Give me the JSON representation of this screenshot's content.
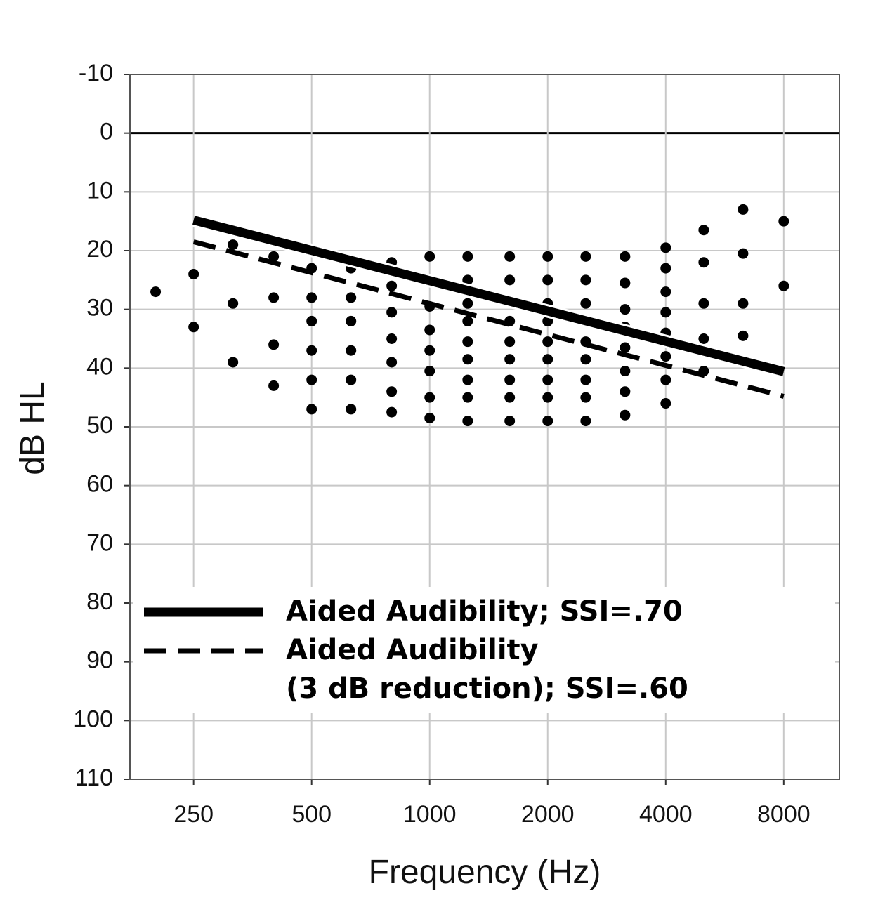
{
  "chart_data": {
    "type": "scatter",
    "x_label": "Frequency (Hz)",
    "y_label": "dB HL",
    "xscale": "log",
    "xlim": [
      172,
      11090
    ],
    "xticks": [
      250,
      500,
      1000,
      2000,
      4000,
      8000
    ],
    "ylim": [
      -10,
      110
    ],
    "y_inverted": true,
    "yticks": [
      -10,
      0,
      10,
      20,
      30,
      40,
      50,
      60,
      70,
      80,
      90,
      100,
      110
    ],
    "grid": true,
    "legend": "lower left",
    "points": {
      "color": "#000000",
      "x": [
        200,
        250,
        250,
        315,
        315,
        315,
        400,
        400,
        400,
        400,
        500,
        500,
        500,
        500,
        500,
        500,
        630,
        630,
        630,
        630,
        630,
        630,
        800,
        800,
        800,
        800,
        800,
        800,
        800,
        1000,
        1000,
        1000,
        1000,
        1000,
        1000,
        1000,
        1250,
        1250,
        1250,
        1250,
        1250,
        1250,
        1250,
        1250,
        1250,
        1600,
        1600,
        1600,
        1600,
        1600,
        1600,
        1600,
        1600,
        2000,
        2000,
        2000,
        2000,
        2000,
        2000,
        2000,
        2000,
        2000,
        2500,
        2500,
        2500,
        2500,
        2500,
        2500,
        2500,
        2500,
        3150,
        3150,
        3150,
        3150,
        3150,
        3150,
        3150,
        3150,
        4000,
        4000,
        4000,
        4000,
        4000,
        4000,
        4000,
        4000,
        5000,
        5000,
        5000,
        5000,
        5000,
        6300,
        6300,
        6300,
        6300,
        8000,
        8000
      ],
      "y": [
        27,
        24,
        33,
        19,
        29,
        39,
        21,
        28,
        36,
        43,
        23,
        28,
        32,
        37,
        42,
        47,
        23,
        28,
        32,
        37,
        42,
        47,
        22,
        26,
        30.5,
        35,
        39,
        44,
        47.5,
        21,
        29.5,
        33.5,
        37,
        40.5,
        45,
        48.5,
        21,
        25,
        29,
        32,
        35.5,
        38.5,
        42,
        45,
        49,
        21,
        25,
        32,
        35.5,
        38.5,
        42,
        45,
        49,
        21,
        25,
        29,
        32,
        35.5,
        38.5,
        42,
        45,
        49,
        21,
        25,
        29,
        35.5,
        38.5,
        42,
        45,
        49,
        21,
        25.5,
        30,
        33,
        36.5,
        40.5,
        44,
        48,
        19.5,
        23,
        27,
        30.5,
        34,
        38,
        42,
        46,
        16.5,
        22,
        29,
        35,
        40.5,
        13,
        20.5,
        29,
        34.5,
        15,
        26
      ]
    },
    "series": [
      {
        "name": "Aided Audibility;  SSI=.70",
        "color": "#000000",
        "style": "solid",
        "x": [
          250,
          8000
        ],
        "y": [
          14.8,
          40.6
        ]
      },
      {
        "name": "Aided Audibility\n(3 dB reduction); SSI=.60",
        "color": "#000000",
        "style": "dashed",
        "x": [
          250,
          8000
        ],
        "y": [
          18.5,
          44.8
        ]
      }
    ]
  }
}
